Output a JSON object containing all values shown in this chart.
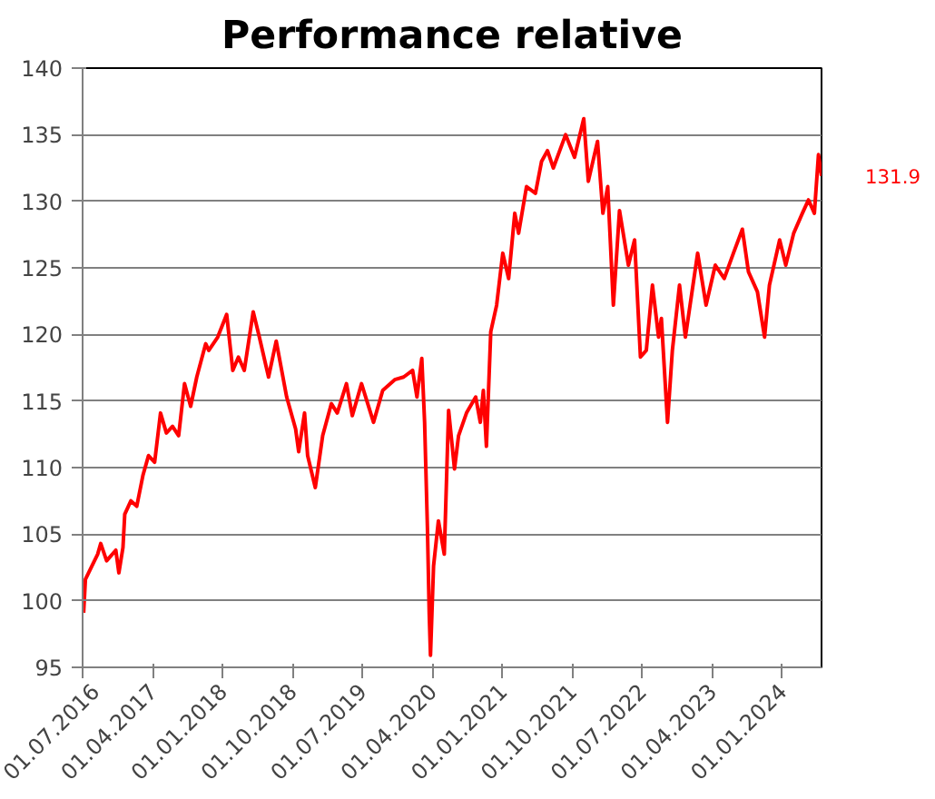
{
  "chart_data": {
    "type": "line",
    "title": "Performance relative",
    "x": [
      "2016-07-05",
      "2016-07-12",
      "2016-08-06",
      "2016-08-29",
      "2016-09-10",
      "2016-10-03",
      "2016-11-08",
      "2016-11-20",
      "2016-12-06",
      "2016-12-13",
      "2017-01-06",
      "2017-01-29",
      "2017-02-22",
      "2017-03-16",
      "2017-04-09",
      "2017-05-02",
      "2017-05-25",
      "2017-06-18",
      "2017-07-12",
      "2017-08-04",
      "2017-08-28",
      "2017-09-21",
      "2017-10-26",
      "2017-11-07",
      "2017-12-12",
      "2018-01-16",
      "2018-02-09",
      "2018-03-03",
      "2018-03-26",
      "2018-04-30",
      "2018-05-24",
      "2018-06-29",
      "2018-07-29",
      "2018-09-08",
      "2018-10-13",
      "2018-10-25",
      "2018-11-17",
      "2018-11-29",
      "2018-12-29",
      "2019-01-27",
      "2019-03-02",
      "2019-03-25",
      "2019-04-30",
      "2019-05-23",
      "2019-06-28",
      "2019-08-14",
      "2019-09-19",
      "2019-11-05",
      "2019-12-10",
      "2020-01-14",
      "2020-01-31",
      "2020-02-19",
      "2020-03-01",
      "2020-03-12",
      "2020-03-19",
      "2020-03-24",
      "2020-04-05",
      "2020-04-24",
      "2020-05-17",
      "2020-06-03",
      "2020-06-26",
      "2020-07-12",
      "2020-08-12",
      "2020-09-17",
      "2020-10-05",
      "2020-10-17",
      "2020-10-29",
      "2020-11-15",
      "2020-12-08",
      "2021-01-01",
      "2021-01-24",
      "2021-02-17",
      "2021-03-04",
      "2021-04-04",
      "2021-05-09",
      "2021-06-02",
      "2021-06-25",
      "2021-07-18",
      "2021-09-04",
      "2021-10-09",
      "2021-11-14",
      "2021-12-02",
      "2022-01-07",
      "2022-01-28",
      "2022-02-16",
      "2022-03-10",
      "2022-04-03",
      "2022-05-08",
      "2022-06-01",
      "2022-06-24",
      "2022-07-17",
      "2022-08-10",
      "2022-09-03",
      "2022-09-14",
      "2022-10-08",
      "2022-10-27",
      "2022-11-24",
      "2022-12-17",
      "2023-02-03",
      "2023-03-08",
      "2023-04-13",
      "2023-05-18",
      "2023-06-23",
      "2023-07-28",
      "2023-08-21",
      "2023-09-25",
      "2023-10-23",
      "2023-11-11",
      "2023-12-21",
      "2024-01-14",
      "2024-02-14",
      "2024-03-19",
      "2024-04-12",
      "2024-05-05",
      "2024-05-21",
      "2024-06-02"
    ],
    "series": [
      {
        "color": "#ff0000",
        "values": [
          99.1,
          101.6,
          102.6,
          103.5,
          104.3,
          103.0,
          103.8,
          102.1,
          104.0,
          106.5,
          107.5,
          107.1,
          109.4,
          110.9,
          110.4,
          114.1,
          112.6,
          113.1,
          112.4,
          116.3,
          114.6,
          116.8,
          119.3,
          118.8,
          119.8,
          121.5,
          117.3,
          118.3,
          117.3,
          121.7,
          119.8,
          116.8,
          119.5,
          115.3,
          112.9,
          111.2,
          114.1,
          110.9,
          108.5,
          112.4,
          114.8,
          114.1,
          116.3,
          113.9,
          116.3,
          113.4,
          115.8,
          116.6,
          116.8,
          117.3,
          115.3,
          118.2,
          113.4,
          105.5,
          99.1,
          95.9,
          102.6,
          106.0,
          103.5,
          114.3,
          109.9,
          112.4,
          114.1,
          115.3,
          113.4,
          115.8,
          111.6,
          120.2,
          122.2,
          126.1,
          124.2,
          129.1,
          127.6,
          131.1,
          130.6,
          133.0,
          133.8,
          132.5,
          135.0,
          133.3,
          136.2,
          131.5,
          134.5,
          129.1,
          131.1,
          122.2,
          129.3,
          125.2,
          127.1,
          118.3,
          118.8,
          123.7,
          119.8,
          121.2,
          113.4,
          118.8,
          123.7,
          119.8,
          126.1,
          122.2,
          125.2,
          124.2,
          126.1,
          127.9,
          124.7,
          123.2,
          119.8,
          123.7,
          127.1,
          125.2,
          127.6,
          129.1,
          130.1,
          129.1,
          133.5,
          131.9
        ]
      }
    ],
    "xlim": [
      "2016-07-01",
      "2024-06-02"
    ],
    "xticks": [
      {
        "value": "2016-07-01",
        "label": "01.07.2016"
      },
      {
        "value": "2017-04-01",
        "label": "01.04.2017"
      },
      {
        "value": "2018-01-01",
        "label": "01.01.2018"
      },
      {
        "value": "2018-10-01",
        "label": "01.10.2018"
      },
      {
        "value": "2019-07-01",
        "label": "01.07.2019"
      },
      {
        "value": "2020-04-01",
        "label": "01.04.2020"
      },
      {
        "value": "2021-01-01",
        "label": "01.01.2021"
      },
      {
        "value": "2021-10-01",
        "label": "01.10.2021"
      },
      {
        "value": "2022-07-01",
        "label": "01.07.2022"
      },
      {
        "value": "2023-04-01",
        "label": "01.04.2023"
      },
      {
        "value": "2024-01-01",
        "label": "01.01.2024"
      }
    ],
    "ylim": [
      95,
      140
    ],
    "yticks": [
      95,
      100,
      105,
      110,
      115,
      120,
      125,
      130,
      135,
      140
    ],
    "grid": "y",
    "marker": "none",
    "line_style": "solid",
    "annotations": [
      {
        "text": "131.9",
        "x": "2024-06-02",
        "y": 131.9
      }
    ]
  }
}
